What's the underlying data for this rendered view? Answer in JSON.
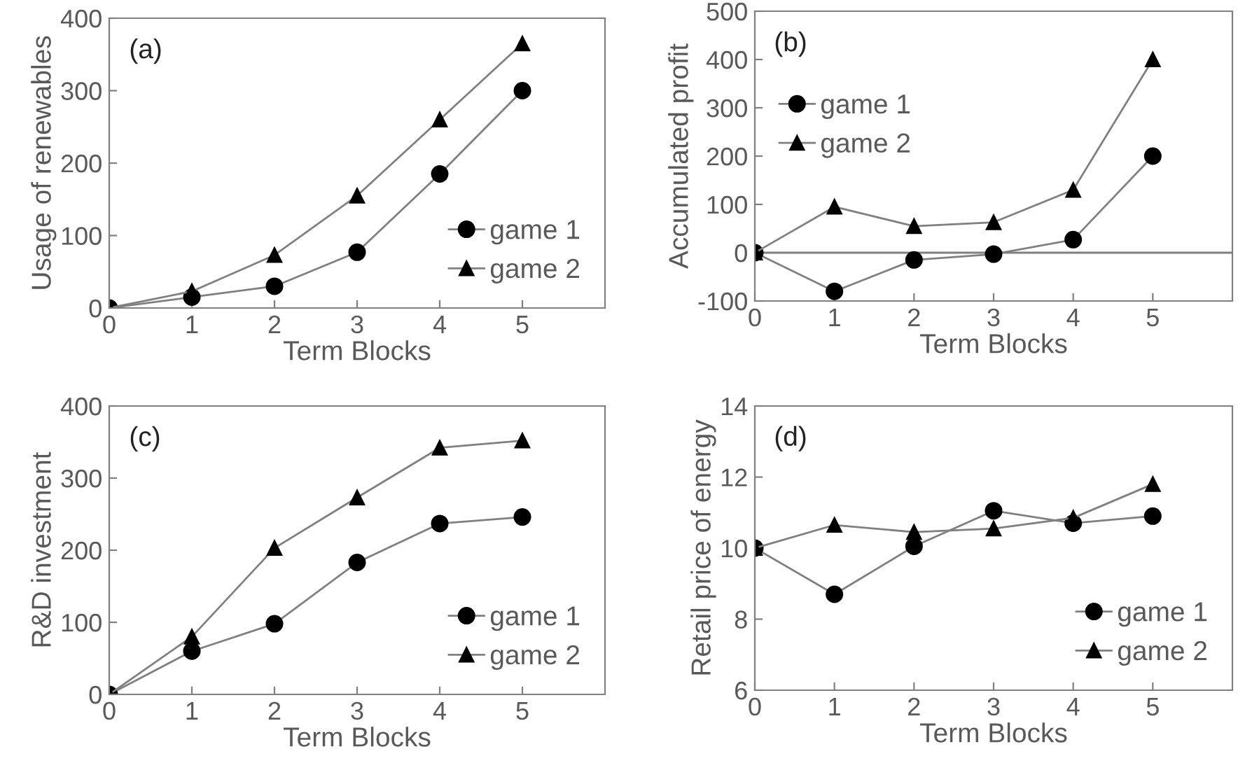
{
  "chart_data": [
    {
      "type": "line",
      "annotations": [
        "(a)"
      ],
      "xlabel": "Term Blocks",
      "ylabel": "Usage of renewables",
      "x": [
        0,
        1,
        2,
        3,
        4,
        5
      ],
      "xlim": [
        0,
        6
      ],
      "xticks": [
        0,
        1,
        2,
        3,
        4,
        5
      ],
      "ylim": [
        0,
        400
      ],
      "yticks": [
        0,
        100,
        200,
        300,
        400
      ],
      "legend": "lower right",
      "grid": false,
      "series": [
        {
          "name": "game 1",
          "color": "#000000",
          "marker": "circle",
          "values": [
            0,
            15,
            30,
            77,
            185,
            300
          ]
        },
        {
          "name": "game 2",
          "color": "#000000",
          "marker": "triangle",
          "values": [
            0,
            23,
            73,
            155,
            260,
            365
          ]
        }
      ]
    },
    {
      "type": "line",
      "annotations": [
        "(b)"
      ],
      "xlabel": "Term Blocks",
      "ylabel": "Accumulated profit",
      "x": [
        0,
        1,
        2,
        3,
        4,
        5
      ],
      "xlim": [
        0,
        6
      ],
      "xticks": [
        0,
        1,
        2,
        3,
        4,
        5
      ],
      "ylim": [
        -100,
        500
      ],
      "yticks": [
        -100,
        0,
        100,
        200,
        300,
        400,
        500
      ],
      "legend": "upper left",
      "grid": false,
      "ref_lines": [
        {
          "axis": "y",
          "value": 0,
          "color": "#808080"
        }
      ],
      "series": [
        {
          "name": "game 1",
          "color": "#000000",
          "marker": "circle",
          "values": [
            0,
            -80,
            -15,
            -3,
            27,
            200
          ]
        },
        {
          "name": "game 2",
          "color": "#000000",
          "marker": "triangle",
          "values": [
            0,
            95,
            55,
            63,
            130,
            400
          ]
        }
      ]
    },
    {
      "type": "line",
      "annotations": [
        "(c)"
      ],
      "xlabel": "Term Blocks",
      "ylabel": "R&D investment",
      "x": [
        0,
        1,
        2,
        3,
        4,
        5
      ],
      "xlim": [
        0,
        6
      ],
      "xticks": [
        0,
        1,
        2,
        3,
        4,
        5
      ],
      "ylim": [
        0,
        400
      ],
      "yticks": [
        0,
        100,
        200,
        300,
        400
      ],
      "legend": "lower right",
      "grid": false,
      "series": [
        {
          "name": "game 1",
          "color": "#000000",
          "marker": "circle",
          "values": [
            0,
            60,
            98,
            183,
            237,
            246
          ]
        },
        {
          "name": "game 2",
          "color": "#000000",
          "marker": "triangle",
          "values": [
            0,
            80,
            203,
            273,
            342,
            352
          ]
        }
      ]
    },
    {
      "type": "line",
      "annotations": [
        "(d)"
      ],
      "xlabel": "Term Blocks",
      "ylabel": "Retail price of energy",
      "x": [
        0,
        1,
        2,
        3,
        4,
        5
      ],
      "xlim": [
        0,
        6
      ],
      "xticks": [
        0,
        1,
        2,
        3,
        4,
        5
      ],
      "ylim": [
        6,
        14
      ],
      "yticks": [
        6,
        8,
        10,
        12,
        14
      ],
      "legend": "lower right",
      "grid": false,
      "series": [
        {
          "name": "game 1",
          "color": "#000000",
          "marker": "circle",
          "values": [
            10,
            8.7,
            10.05,
            11.05,
            10.7,
            10.9
          ]
        },
        {
          "name": "game 2",
          "color": "#000000",
          "marker": "triangle",
          "values": [
            10,
            10.65,
            10.45,
            10.55,
            10.85,
            11.8
          ]
        }
      ]
    }
  ]
}
